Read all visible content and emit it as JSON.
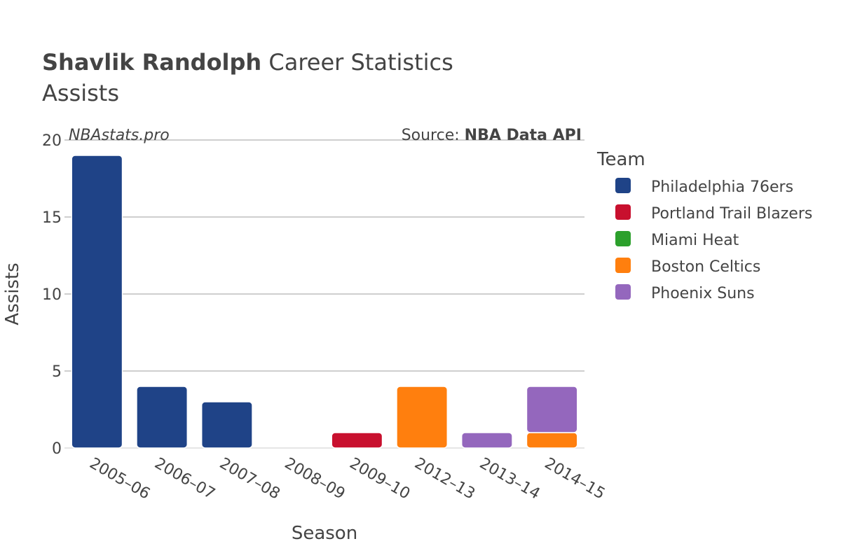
{
  "header": {
    "player": "Shavlik Randolph",
    "title_rest": " Career Statistics",
    "subtitle": "Assists"
  },
  "watermark": "NBAstats.pro",
  "source": {
    "prefix": "Source: ",
    "name": "NBA Data API"
  },
  "legend": {
    "title": "Team"
  },
  "chart_data": {
    "type": "bar",
    "stacked": true,
    "categories": [
      "2005–06",
      "2006–07",
      "2007–08",
      "2008–09",
      "2009–10",
      "2012–13",
      "2013–14",
      "2014–15"
    ],
    "series": [
      {
        "name": "Philadelphia 76ers",
        "color": "#1f4387",
        "values": [
          19,
          4,
          3,
          0,
          0,
          0,
          0,
          0
        ]
      },
      {
        "name": "Portland Trail Blazers",
        "color": "#c8102e",
        "values": [
          0,
          0,
          0,
          0,
          1,
          0,
          0,
          0
        ]
      },
      {
        "name": "Miami Heat",
        "color": "#2ca02c",
        "values": [
          0,
          0,
          0,
          0,
          0,
          0,
          0,
          0
        ]
      },
      {
        "name": "Boston Celtics",
        "color": "#ff7f0e",
        "values": [
          0,
          0,
          0,
          0,
          0,
          4,
          0,
          1
        ]
      },
      {
        "name": "Phoenix Suns",
        "color": "#9467bd",
        "values": [
          0,
          0,
          0,
          0,
          0,
          0,
          1,
          3
        ]
      }
    ],
    "xlabel": "Season",
    "ylabel": "Assists",
    "ylim": [
      0,
      20
    ],
    "yticks": [
      0,
      5,
      10,
      15,
      20
    ],
    "grid": true,
    "legend_position": "right"
  }
}
